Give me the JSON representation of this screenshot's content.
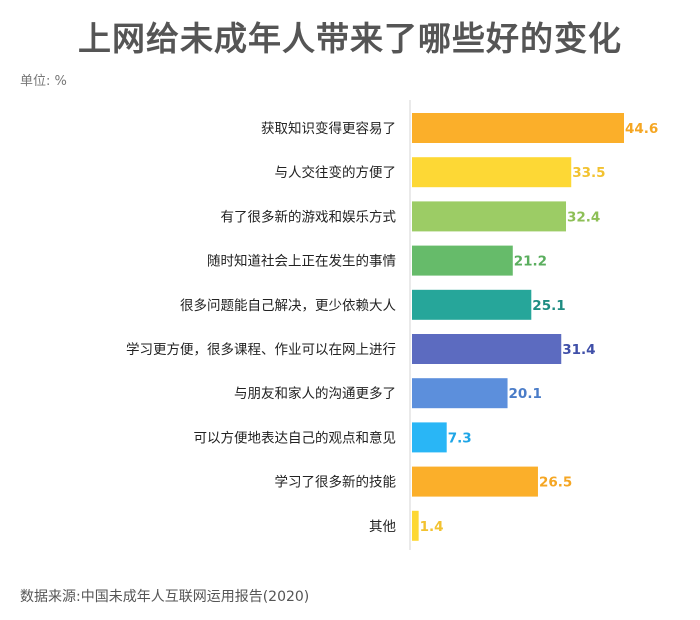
{
  "header": {
    "title": "上网给未成年人带来了哪些好的变化",
    "unit": "单位: %"
  },
  "footer": {
    "source": "数据来源:中国未成年人互联网运用报告(2020)"
  },
  "chart_data": {
    "type": "bar",
    "orientation": "horizontal",
    "title": "上网给未成年人带来了哪些好的变化",
    "unit": "%",
    "categories": [
      "获取知识变得更容易了",
      "与人交往变的方便了",
      "有了很多新的游戏和娱乐方式",
      "随时知道社会上正在发生的事情",
      "很多问题能自己解决，更少依赖大人",
      "学习更方便，很多课程、作业可以在网上进行",
      "与朋友和家人的沟通更多了",
      "可以方便地表达自己的观点和意见",
      "学习了很多新的技能",
      "其他"
    ],
    "values": [
      44.6,
      33.5,
      32.4,
      21.2,
      25.1,
      31.4,
      20.1,
      7.3,
      26.5,
      1.4
    ],
    "value_labels": [
      "44.6",
      "33.5",
      "32.4",
      "21.2",
      "25.1",
      "31.4",
      "20.1",
      "7.3",
      "26.5",
      "1.4"
    ],
    "colors": [
      "#FBAF2A",
      "#FDD835",
      "#9CCC65",
      "#66BB6A",
      "#26A69A",
      "#5C6BC0",
      "#5C8FDC",
      "#29B6F6",
      "#FBAF2A",
      "#FDD835"
    ],
    "label_colors": [
      "#F5A623",
      "#F2C230",
      "#8DBF56",
      "#5AAE5E",
      "#1E8C82",
      "#3F4FA8",
      "#4A7CC8",
      "#1EA5E6",
      "#F5A623",
      "#F2C230"
    ],
    "xlim": [
      0,
      44.6
    ],
    "grid": false,
    "legend": "none"
  }
}
